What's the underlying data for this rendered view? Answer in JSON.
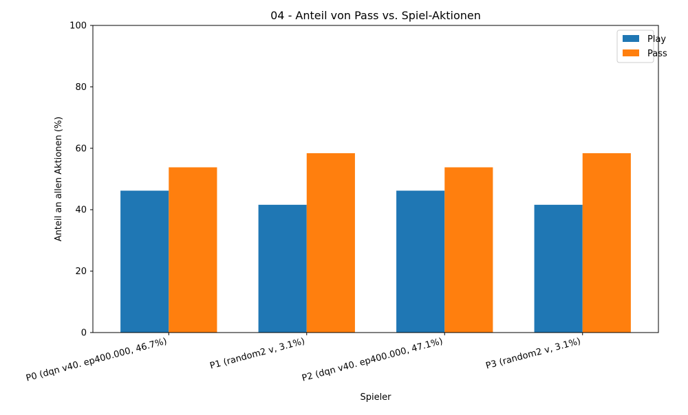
{
  "chart_data": {
    "type": "bar",
    "title": "04 - Anteil von Pass vs. Spiel-Aktionen",
    "xlabel": "Spieler",
    "ylabel": "Anteil an allen Aktionen (%)",
    "categories": [
      "P0 (dqn v40. ep400.000, 46.7%)",
      "P1 (random2 v, 3.1%)",
      "P2 (dqn v40. ep400.000, 47.1%)",
      "P3 (random2 v, 3.1%)"
    ],
    "series": [
      {
        "name": "Play",
        "color": "#1f77b4",
        "values": [
          46.2,
          41.6,
          46.2,
          41.6
        ]
      },
      {
        "name": "Pass",
        "color": "#ff7f0e",
        "values": [
          53.8,
          58.4,
          53.8,
          58.4
        ]
      }
    ],
    "ylim": [
      0,
      100
    ],
    "yticks": [
      0,
      20,
      40,
      60,
      80,
      100
    ],
    "grid": false,
    "legend_position": "top-right"
  }
}
